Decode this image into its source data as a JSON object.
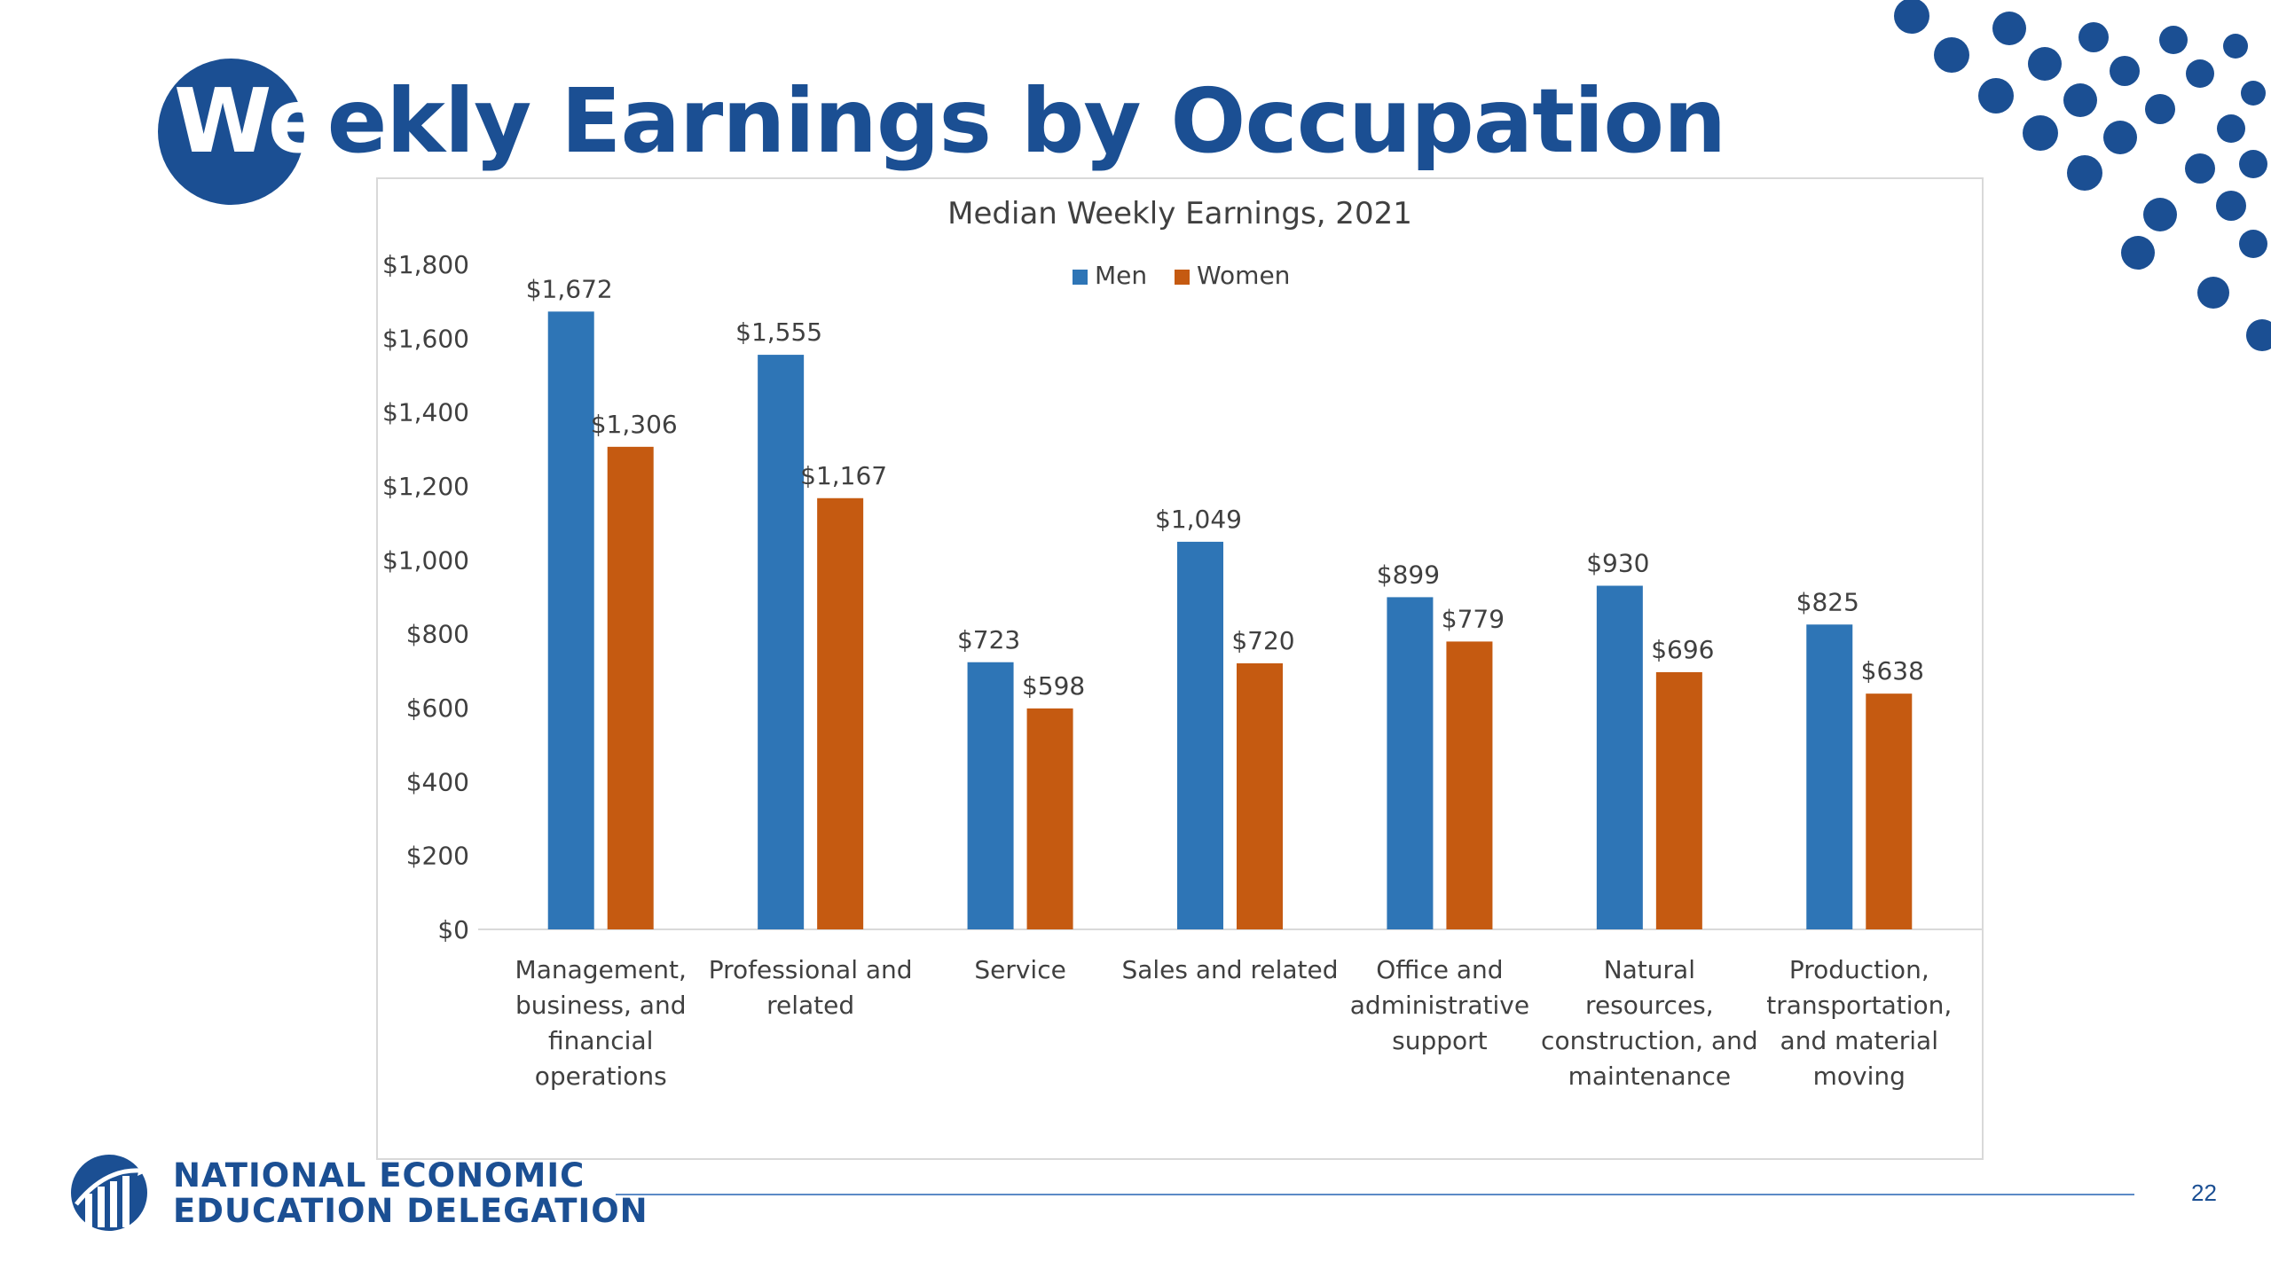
{
  "slide": {
    "title": "Weekly Earnings by Occupation",
    "page_number": "22",
    "org_line1": "NATIONAL ECONOMIC",
    "org_line2": "EDUCATION DELEGATION"
  },
  "colors": {
    "brand_blue": "#1b4f93",
    "men": "#2e75b6",
    "women": "#c55a11"
  },
  "chart_data": {
    "type": "bar",
    "title": "Median Weekly Earnings, 2021",
    "xlabel": "",
    "ylabel": "",
    "ylim": [
      0,
      1800
    ],
    "yticks": [
      0,
      200,
      400,
      600,
      800,
      1000,
      1200,
      1400,
      1600,
      1800
    ],
    "ytick_labels": [
      "$0",
      "$200",
      "$400",
      "$600",
      "$800",
      "$1,000",
      "$1,200",
      "$1,400",
      "$1,600",
      "$1,800"
    ],
    "grid": false,
    "legend_position": "top-center",
    "categories": [
      [
        "Management,",
        "business, and",
        "financial",
        "operations"
      ],
      [
        "Professional and",
        "related"
      ],
      [
        "Service"
      ],
      [
        "Sales and related"
      ],
      [
        "Office and",
        "administrative",
        "support"
      ],
      [
        "Natural",
        "resources,",
        "construction, and",
        "maintenance"
      ],
      [
        "Production,",
        "transportation,",
        "and material",
        "moving"
      ]
    ],
    "series": [
      {
        "name": "Men",
        "color": "#2e75b6",
        "values": [
          1672,
          1555,
          723,
          1049,
          899,
          930,
          825
        ],
        "labels": [
          "$1,672",
          "$1,555",
          "$723",
          "$1,049",
          "$899",
          "$930",
          "$825"
        ]
      },
      {
        "name": "Women",
        "color": "#c55a11",
        "values": [
          1306,
          1167,
          598,
          720,
          779,
          696,
          638
        ],
        "labels": [
          "$1,306",
          "$1,167",
          "$598",
          "$720",
          "$779",
          "$696",
          "$638"
        ]
      }
    ]
  }
}
